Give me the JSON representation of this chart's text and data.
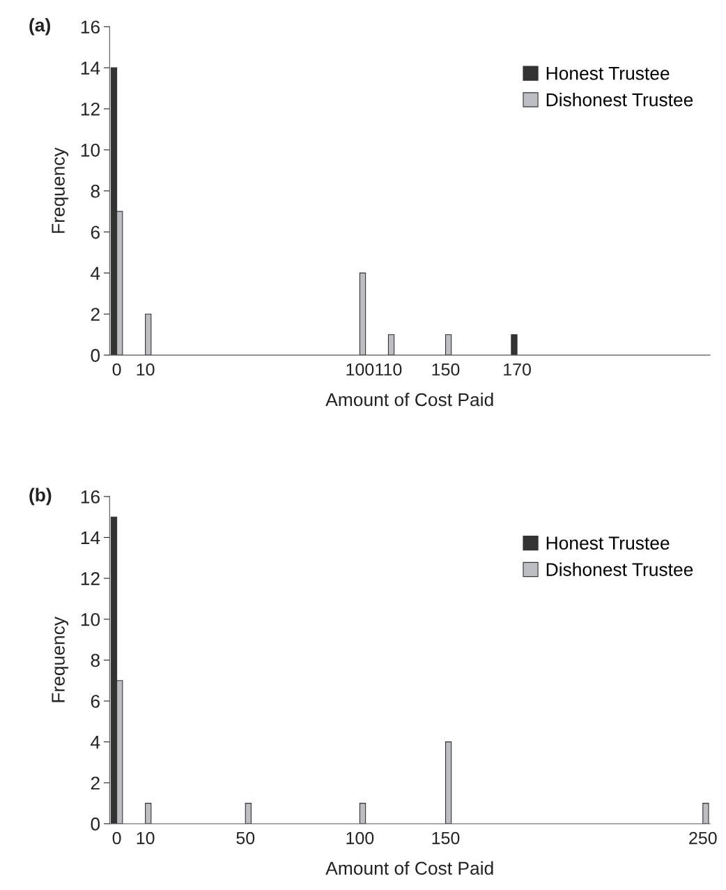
{
  "chart_data": [
    {
      "type": "bar",
      "title": "(a)",
      "xlabel": "Amount of Cost Paid",
      "ylabel": "Frequency",
      "categories": [
        "0",
        null,
        "10",
        null,
        null,
        null,
        null,
        null,
        null,
        null,
        null,
        null,
        null,
        null,
        null,
        null,
        null,
        "100",
        null,
        "110",
        null,
        null,
        null,
        "150",
        null,
        null,
        null,
        null,
        "170",
        null,
        null,
        null,
        null,
        null,
        null,
        null,
        null,
        null,
        null,
        null,
        null,
        null
      ],
      "series": [
        {
          "name": "Honest Trustee",
          "color": "#333333",
          "values": [
            14,
            null,
            null,
            null,
            null,
            null,
            null,
            null,
            null,
            null,
            null,
            null,
            null,
            null,
            null,
            null,
            null,
            null,
            null,
            null,
            null,
            null,
            null,
            null,
            null,
            null,
            null,
            null,
            1,
            null,
            null,
            null,
            null,
            null,
            null,
            null,
            null,
            null,
            null,
            null,
            null,
            null
          ]
        },
        {
          "name": "Dishonest Trustee",
          "color": "#bdbec3",
          "values": [
            7,
            null,
            2,
            null,
            null,
            null,
            null,
            null,
            null,
            null,
            null,
            null,
            null,
            null,
            null,
            null,
            null,
            4,
            null,
            1,
            null,
            null,
            null,
            1,
            null,
            null,
            null,
            null,
            null,
            null,
            null,
            null,
            null,
            null,
            null,
            null,
            null,
            null,
            null,
            null,
            null,
            null
          ]
        }
      ],
      "ylim": [
        0,
        16
      ],
      "yticks": [
        0,
        2,
        4,
        6,
        8,
        10,
        12,
        14,
        16
      ],
      "grid": false,
      "legend": "top right"
    },
    {
      "type": "bar",
      "title": "(b)",
      "xlabel": "Amount of Cost Paid",
      "ylabel": "Frequency",
      "categories": [
        "0",
        null,
        "10",
        null,
        null,
        null,
        null,
        null,
        null,
        "50",
        null,
        null,
        null,
        null,
        null,
        null,
        null,
        "100",
        null,
        null,
        null,
        null,
        null,
        "150",
        null,
        null,
        null,
        null,
        null,
        null,
        null,
        null,
        null,
        null,
        null,
        null,
        null,
        null,
        null,
        null,
        null,
        "250"
      ],
      "series": [
        {
          "name": "Honest Trustee",
          "color": "#333333",
          "values": [
            15,
            null,
            null,
            null,
            null,
            null,
            null,
            null,
            null,
            null,
            null,
            null,
            null,
            null,
            null,
            null,
            null,
            null,
            null,
            null,
            null,
            null,
            null,
            null,
            null,
            null,
            null,
            null,
            null,
            null,
            null,
            null,
            null,
            null,
            null,
            null,
            null,
            null,
            null,
            null,
            null,
            null
          ]
        },
        {
          "name": "Dishonest Trustee",
          "color": "#bdbec3",
          "values": [
            7,
            null,
            1,
            null,
            null,
            null,
            null,
            null,
            null,
            1,
            null,
            null,
            null,
            null,
            null,
            null,
            null,
            1,
            null,
            null,
            null,
            null,
            null,
            4,
            null,
            null,
            null,
            null,
            null,
            null,
            null,
            null,
            null,
            null,
            null,
            null,
            null,
            null,
            null,
            null,
            null,
            1
          ]
        }
      ],
      "ylim": [
        0,
        16
      ],
      "yticks": [
        0,
        2,
        4,
        6,
        8,
        10,
        12,
        14,
        16
      ],
      "grid": false,
      "legend": "top right"
    }
  ]
}
